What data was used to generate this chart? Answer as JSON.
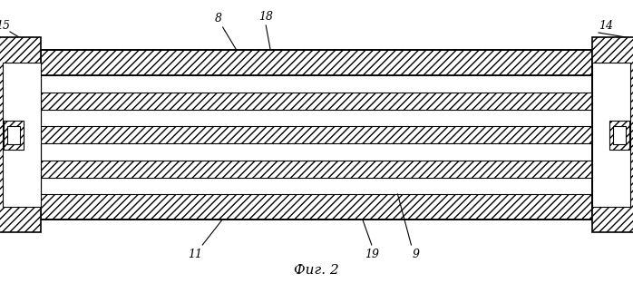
{
  "fig_label": "Фиг. 2",
  "background_color": "#ffffff",
  "line_color": "#000000",
  "figsize": [
    6.98,
    3.12
  ],
  "dpi": 100,
  "annot_fs": 9,
  "caption_fs": 11
}
